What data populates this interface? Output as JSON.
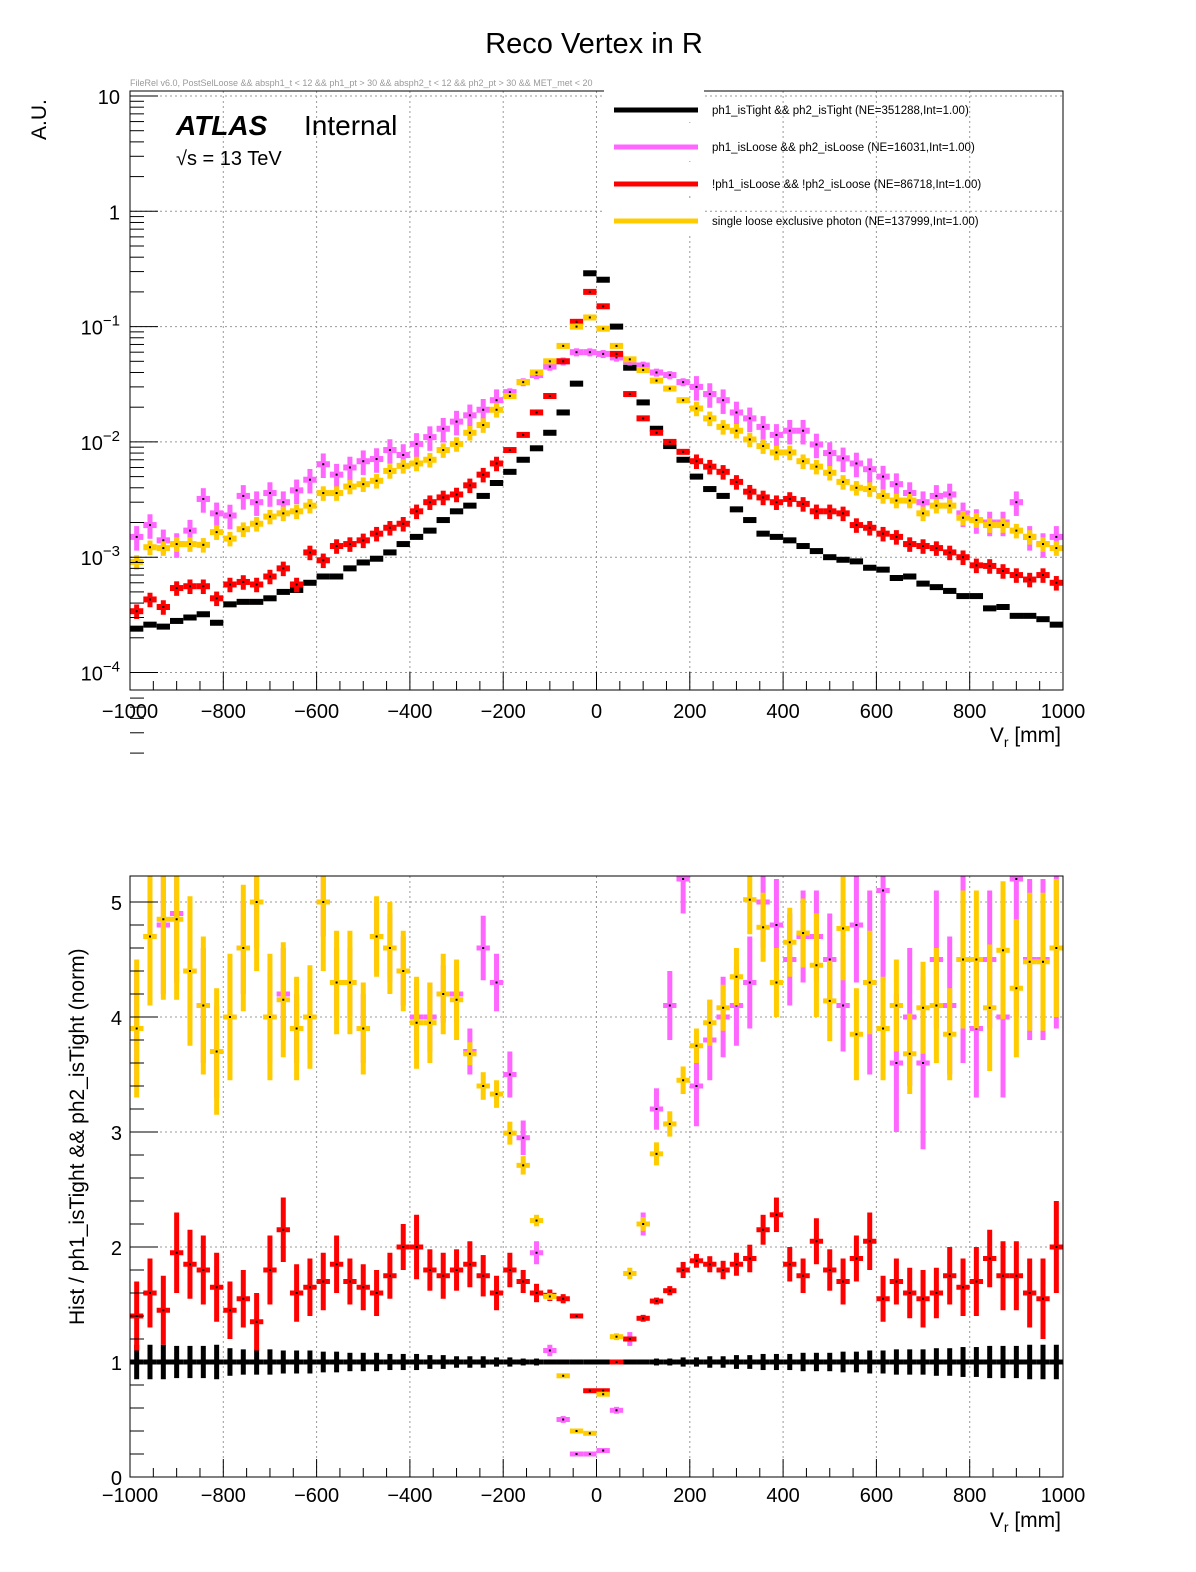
{
  "chart_data": [
    {
      "type": "scatter",
      "title": "Reco Vertex in R",
      "subtitle": "FileRel v6.0, PostSelLoose && absph1_t < 12 && ph1_pt > 30 && absph2_t < 12 && ph2_pt > 30 && MET_met < 20",
      "annotation_main": "ATLAS",
      "annotation_sub": "Internal",
      "annotation_energy": "√s = 13 TeV",
      "xlabel": "V",
      "xlabel_sub": "r",
      "xlabel_unit": " [mm]",
      "ylabel": "A.U.",
      "xlim": [
        -1000,
        1000
      ],
      "ylim": [
        0.0001,
        10
      ],
      "yscale": "log",
      "grid": true,
      "legend_position": "top-right",
      "x_ticks": [
        "−1000",
        "−800",
        "−600",
        "−400",
        "−200",
        "0",
        "200",
        "400",
        "600",
        "800",
        "1000"
      ],
      "x_tick_values": [
        -1000,
        -800,
        -600,
        -400,
        -200,
        0,
        200,
        400,
        600,
        800,
        1000
      ],
      "y_ticks": [
        {
          "value": 10,
          "base": "10",
          "exp": ""
        },
        {
          "value": 1,
          "base": "1",
          "exp": ""
        },
        {
          "value": 0.1,
          "base": "10",
          "exp": "−1"
        },
        {
          "value": 0.01,
          "base": "10",
          "exp": "−2"
        },
        {
          "value": 0.001,
          "base": "10",
          "exp": "−3"
        },
        {
          "value": 0.0001,
          "base": "10",
          "exp": "−4"
        }
      ],
      "nbins": 70,
      "series": [
        {
          "name": "ph1_isTight && ph2_isTight (NE=351288,Int=1.00)",
          "color": "#000000",
          "values": [
            0.00024,
            0.00026,
            0.00025,
            0.00028,
            0.0003,
            0.00032,
            0.00027,
            0.00039,
            0.00041,
            0.00041,
            0.00044,
            0.0005,
            0.00052,
            0.0006,
            0.00068,
            0.00068,
            0.0008,
            0.0009,
            0.00097,
            0.0011,
            0.0013,
            0.0015,
            0.0017,
            0.0021,
            0.0025,
            0.0028,
            0.0034,
            0.0044,
            0.0055,
            0.007,
            0.0088,
            0.012,
            0.018,
            0.032,
            0.29,
            0.255,
            0.1,
            0.044,
            0.022,
            0.013,
            0.0092,
            0.007,
            0.005,
            0.0039,
            0.0034,
            0.0026,
            0.0021,
            0.0016,
            0.0015,
            0.0014,
            0.00125,
            0.00113,
            0.001,
            0.00095,
            0.00092,
            0.00081,
            0.00078,
            0.00066,
            0.00068,
            0.00059,
            0.00055,
            0.00051,
            0.00046,
            0.00046,
            0.00036,
            0.00037,
            0.00031,
            0.00031,
            0.00029,
            0.00026
          ],
          "ratio": [
            1,
            1,
            1,
            1,
            1,
            1,
            1,
            1,
            1,
            1,
            1,
            1,
            1,
            1,
            1,
            1,
            1,
            1,
            1,
            1,
            1,
            1,
            1,
            1,
            1,
            1,
            1,
            1,
            1,
            1,
            1,
            1,
            1,
            1,
            1,
            1,
            1,
            1,
            1,
            1,
            1,
            1,
            1,
            1,
            1,
            1,
            1,
            1,
            1,
            1,
            1,
            1,
            1,
            1,
            1,
            1,
            1,
            1,
            1,
            1,
            1,
            1,
            1,
            1,
            1,
            1,
            1,
            1,
            1,
            1
          ],
          "ratio_err": [
            0.15,
            0.15,
            0.15,
            0.14,
            0.14,
            0.14,
            0.15,
            0.12,
            0.11,
            0.11,
            0.11,
            0.1,
            0.1,
            0.1,
            0.09,
            0.09,
            0.08,
            0.08,
            0.08,
            0.07,
            0.07,
            0.07,
            0.06,
            0.06,
            0.05,
            0.05,
            0.05,
            0.04,
            0.04,
            0.03,
            0.03,
            0.02,
            0.02,
            0.01,
            0.003,
            0.003,
            0.01,
            0.02,
            0.02,
            0.03,
            0.03,
            0.04,
            0.04,
            0.05,
            0.05,
            0.06,
            0.06,
            0.07,
            0.07,
            0.07,
            0.08,
            0.08,
            0.08,
            0.09,
            0.09,
            0.1,
            0.1,
            0.11,
            0.11,
            0.11,
            0.12,
            0.12,
            0.13,
            0.13,
            0.14,
            0.14,
            0.14,
            0.15,
            0.15,
            0.15
          ]
        },
        {
          "name": "ph1_isLoose && ph2_isLoose (NE=16031,Int=1.00)",
          "color": "#ff66ff",
          "values": [
            0.0015,
            0.0019,
            0.0014,
            0.0013,
            0.0017,
            0.0032,
            0.0024,
            0.0023,
            0.0034,
            0.003,
            0.0036,
            0.003,
            0.0038,
            0.0047,
            0.0064,
            0.0052,
            0.006,
            0.0068,
            0.0071,
            0.0085,
            0.0077,
            0.0096,
            0.011,
            0.013,
            0.015,
            0.017,
            0.019,
            0.023,
            0.027,
            0.033,
            0.038,
            0.045,
            0.05,
            0.06,
            0.06,
            0.058,
            0.054,
            0.05,
            0.046,
            0.04,
            0.038,
            0.033,
            0.03,
            0.026,
            0.023,
            0.018,
            0.016,
            0.0135,
            0.0115,
            0.0125,
            0.0125,
            0.0095,
            0.008,
            0.0072,
            0.0065,
            0.0058,
            0.005,
            0.0043,
            0.0036,
            0.003,
            0.0034,
            0.0035,
            0.0024,
            0.0021,
            0.002,
            0.002,
            0.003,
            0.0015,
            0.0013,
            0.0015
          ],
          "ratio": [
            3.9,
            4.7,
            4.8,
            4.9,
            4.4,
            4.1,
            3.7,
            4.0,
            4.6,
            5.0,
            4.0,
            4.2,
            3.9,
            4.0,
            5.0,
            4.3,
            4.3,
            3.9,
            4.7,
            4.6,
            4.4,
            4.0,
            4.0,
            4.2,
            4.2,
            3.7,
            4.6,
            4.3,
            3.5,
            2.95,
            1.95,
            1.1,
            0.5,
            0.2,
            0.2,
            0.23,
            0.58,
            1.2,
            2.2,
            3.2,
            4.1,
            5.2,
            3.4,
            3.8,
            4.0,
            4.1,
            4.3,
            5.0,
            4.8,
            4.5,
            4.7,
            4.7,
            4.5,
            4.1,
            4.8,
            4.3,
            5.1,
            3.6,
            4.0,
            3.6,
            4.5,
            4.1,
            4.5,
            3.9,
            4.5,
            4.0,
            5.2,
            4.5,
            4.5,
            4.6
          ],
          "ratio_err": [
            0.5,
            0.6,
            0.6,
            0.6,
            0.5,
            0.5,
            0.4,
            0.4,
            0.4,
            0.4,
            0.4,
            0.4,
            0.3,
            0.3,
            0.3,
            0.3,
            0.3,
            0.3,
            0.3,
            0.3,
            0.3,
            0.3,
            0.3,
            0.25,
            0.25,
            0.2,
            0.28,
            0.25,
            0.2,
            0.15,
            0.1,
            0.05,
            0.03,
            0.02,
            0.02,
            0.02,
            0.03,
            0.06,
            0.1,
            0.18,
            0.3,
            0.3,
            0.35,
            0.35,
            0.35,
            0.35,
            0.4,
            0.4,
            0.4,
            0.4,
            0.4,
            0.4,
            0.4,
            0.4,
            0.5,
            0.8,
            0.8,
            0.6,
            0.6,
            0.75,
            0.6,
            0.6,
            0.9,
            0.6,
            0.6,
            0.7,
            1.2,
            0.7,
            0.7,
            0.7
          ]
        },
        {
          "name": "!ph1_isLoose && !ph2_isLoose (NE=86718,Int=1.00)",
          "color": "#ff0000",
          "values": [
            0.00034,
            0.00043,
            0.00037,
            0.00054,
            0.00056,
            0.00056,
            0.00044,
            0.00058,
            0.00061,
            0.00058,
            0.00068,
            0.0008,
            0.00058,
            0.0011,
            0.00094,
            0.00125,
            0.0013,
            0.0014,
            0.0016,
            0.0018,
            0.00195,
            0.0025,
            0.003,
            0.0033,
            0.0035,
            0.0042,
            0.0052,
            0.0065,
            0.0085,
            0.0115,
            0.018,
            0.025,
            0.05,
            0.11,
            0.2,
            0.15,
            0.058,
            0.026,
            0.016,
            0.012,
            0.01,
            0.0082,
            0.0068,
            0.0061,
            0.0055,
            0.0045,
            0.0037,
            0.0033,
            0.003,
            0.0032,
            0.0029,
            0.0025,
            0.0025,
            0.0024,
            0.0019,
            0.0018,
            0.0016,
            0.0015,
            0.0013,
            0.00125,
            0.0012,
            0.0011,
            0.001,
            0.00085,
            0.00084,
            0.00076,
            0.0007,
            0.00064,
            0.0007,
            0.0006
          ],
          "ratio": [
            1.4,
            1.6,
            1.45,
            1.95,
            1.85,
            1.8,
            1.65,
            1.45,
            1.55,
            1.35,
            1.8,
            2.15,
            1.6,
            1.65,
            1.7,
            1.85,
            1.7,
            1.65,
            1.6,
            1.75,
            2.0,
            2.0,
            1.8,
            1.75,
            1.8,
            1.85,
            1.75,
            1.6,
            1.8,
            1.7,
            1.6,
            1.58,
            1.55,
            1.4,
            0.75,
            0.75,
            1.0,
            1.2,
            1.38,
            1.53,
            1.62,
            1.8,
            1.88,
            1.85,
            1.8,
            1.85,
            1.9,
            2.15,
            2.28,
            1.85,
            1.75,
            2.05,
            1.8,
            1.7,
            1.9,
            2.05,
            1.55,
            1.7,
            1.6,
            1.55,
            1.6,
            1.75,
            1.65,
            1.7,
            1.9,
            1.75,
            1.75,
            1.6,
            1.55,
            2.0
          ],
          "ratio_err": [
            0.3,
            0.3,
            0.3,
            0.35,
            0.3,
            0.3,
            0.3,
            0.25,
            0.25,
            0.25,
            0.3,
            0.28,
            0.25,
            0.25,
            0.25,
            0.25,
            0.2,
            0.2,
            0.2,
            0.2,
            0.2,
            0.28,
            0.18,
            0.2,
            0.18,
            0.2,
            0.18,
            0.15,
            0.15,
            0.1,
            0.08,
            0.05,
            0.04,
            0.02,
            0.01,
            0.01,
            0.01,
            0.02,
            0.03,
            0.03,
            0.04,
            0.07,
            0.06,
            0.07,
            0.08,
            0.1,
            0.12,
            0.13,
            0.15,
            0.15,
            0.15,
            0.2,
            0.18,
            0.2,
            0.2,
            0.25,
            0.2,
            0.2,
            0.22,
            0.25,
            0.22,
            0.25,
            0.25,
            0.3,
            0.25,
            0.3,
            0.3,
            0.3,
            0.35,
            0.4
          ]
        },
        {
          "name": "single loose exclusive photon (NE=137999,Int=1.00)",
          "color": "#ffcc00",
          "values": [
            0.00091,
            0.00122,
            0.0012,
            0.0013,
            0.0013,
            0.00128,
            0.00165,
            0.00145,
            0.00175,
            0.00195,
            0.00225,
            0.0024,
            0.0025,
            0.0028,
            0.0036,
            0.0036,
            0.0041,
            0.0043,
            0.0046,
            0.0056,
            0.0062,
            0.0065,
            0.007,
            0.0085,
            0.0096,
            0.012,
            0.014,
            0.019,
            0.025,
            0.033,
            0.04,
            0.05,
            0.068,
            0.1,
            0.12,
            0.096,
            0.068,
            0.052,
            0.042,
            0.034,
            0.029,
            0.023,
            0.0195,
            0.016,
            0.0135,
            0.0125,
            0.0105,
            0.0092,
            0.0081,
            0.0081,
            0.0068,
            0.0061,
            0.0054,
            0.0045,
            0.004,
            0.0039,
            0.0034,
            0.0031,
            0.0031,
            0.0024,
            0.0028,
            0.0028,
            0.0022,
            0.0021,
            0.0019,
            0.0019,
            0.0017,
            0.0015,
            0.0013,
            0.0012
          ],
          "ratio": [
            3.9,
            4.7,
            4.85,
            4.85,
            4.4,
            4.1,
            3.7,
            4.0,
            4.6,
            5.0,
            4.0,
            4.15,
            3.9,
            4.0,
            5.0,
            4.3,
            4.3,
            3.9,
            4.7,
            4.6,
            4.4,
            3.95,
            3.95,
            4.2,
            4.15,
            3.68,
            3.4,
            3.33,
            2.99,
            2.71,
            2.23,
            1.57,
            0.88,
            0.4,
            0.38,
            0.72,
            1.22,
            1.77,
            2.2,
            2.81,
            3.07,
            3.45,
            3.75,
            3.95,
            4.08,
            4.35,
            5.02,
            4.78,
            4.3,
            4.65,
            4.73,
            4.45,
            4.14,
            4.77,
            3.85,
            4.3,
            3.9,
            4.1,
            3.68,
            4.08,
            4.1,
            3.85,
            4.5,
            4.5,
            4.08,
            4.58,
            4.25,
            4.48,
            4.48,
            4.6
          ],
          "ratio_err": [
            0.6,
            0.6,
            0.7,
            0.7,
            0.65,
            0.6,
            0.55,
            0.55,
            0.55,
            0.6,
            0.55,
            0.5,
            0.45,
            0.45,
            0.6,
            0.45,
            0.45,
            0.4,
            0.35,
            0.4,
            0.35,
            0.4,
            0.35,
            0.35,
            0.35,
            0.1,
            0.12,
            0.12,
            0.1,
            0.08,
            0.05,
            0.03,
            0.02,
            0.01,
            0.01,
            0.02,
            0.03,
            0.05,
            0.06,
            0.1,
            0.11,
            0.12,
            0.15,
            0.2,
            0.2,
            0.25,
            0.3,
            0.3,
            0.3,
            0.3,
            0.3,
            0.45,
            0.35,
            0.45,
            0.4,
            0.45,
            0.45,
            0.4,
            0.35,
            0.4,
            0.5,
            0.4,
            0.6,
            0.6,
            0.55,
            0.6,
            0.6,
            0.6,
            0.6,
            0.6
          ]
        }
      ]
    },
    {
      "type": "scatter",
      "title": "",
      "xlabel": "V",
      "xlabel_sub": "r",
      "xlabel_unit": " [mm]",
      "ylabel": "Hist / ph1_isTight && ph2_isTight (norm)",
      "xlim": [
        -1000,
        1000
      ],
      "ylim": [
        0,
        5.23
      ],
      "grid": true,
      "x_ticks": [
        "−1000",
        "−800",
        "−600",
        "−400",
        "−200",
        "0",
        "200",
        "400",
        "600",
        "800",
        "1000"
      ],
      "x_tick_values": [
        -1000,
        -800,
        -600,
        -400,
        -200,
        0,
        200,
        400,
        600,
        800,
        1000
      ],
      "y_ticks": [
        "0",
        "1",
        "2",
        "3",
        "4",
        "5"
      ],
      "y_tick_values": [
        0,
        1,
        2,
        3,
        4,
        5
      ],
      "series_ref": "ratio values of each series in chart_data[0].series"
    }
  ]
}
